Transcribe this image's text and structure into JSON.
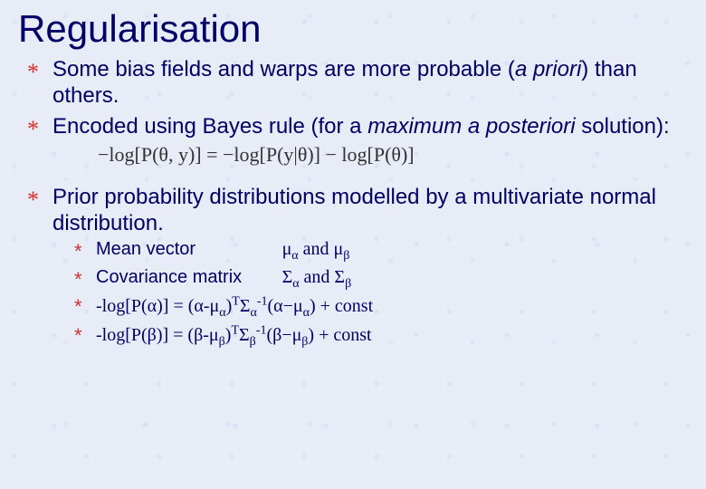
{
  "title": "Regularisation",
  "bullets": {
    "b1_pre": "Some bias fields and warps are more probable (",
    "b1_ital": "a priori",
    "b1_post": ") than others.",
    "b2_pre": "Encoded using Bayes rule (for a ",
    "b2_ital": "maximum a posteriori",
    "b2_post": " solution):",
    "formula": "−log[P(θ, y)] = −log[P(y|θ)] − log[P(θ)]",
    "b3": "Prior probability distributions modelled by a multivariate normal distribution."
  },
  "sub": {
    "s1_label": "Mean vector",
    "s1_val": "μ<sub>α</sub> and μ<sub>β</sub>",
    "s2_label": "Covariance matrix",
    "s2_val": "Σ<sub>α</sub> and Σ<sub>β</sub>",
    "s3": "-log[P(α)] = (α-μ<sub>α</sub>)<sup>T</sup>Σ<sub>α</sub><sup>-1</sup>(α−μ<sub>α</sub>) + const",
    "s4": "-log[P(β)] = (β-μ<sub>β</sub>)<sup>T</sup>Σ<sub>β</sub><sup>-1</sup>(β−μ<sub>β</sub>) + const"
  },
  "colors": {
    "text": "#000066",
    "bullet_star": "#cc3333",
    "background": "#e8ecf7"
  }
}
